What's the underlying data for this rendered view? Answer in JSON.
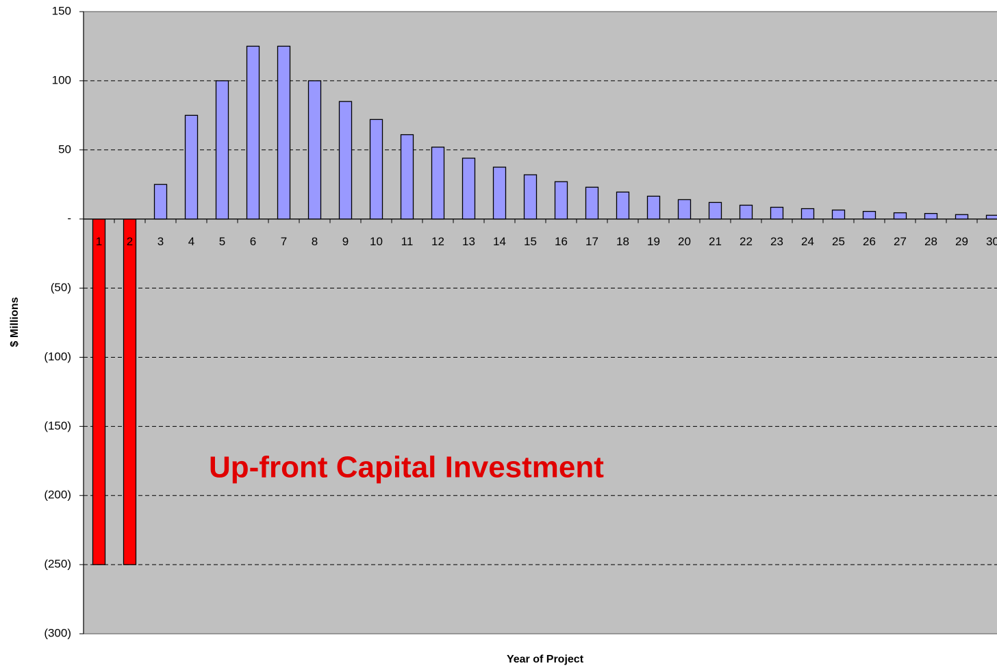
{
  "chart_data": {
    "type": "bar",
    "xlabel": "Year of Project",
    "ylabel": "$ Millions",
    "annotation": "Up-front Capital Investment",
    "categories": [
      "1",
      "2",
      "3",
      "4",
      "5",
      "6",
      "7",
      "8",
      "9",
      "10",
      "11",
      "12",
      "13",
      "14",
      "15",
      "16",
      "17",
      "18",
      "19",
      "20",
      "21",
      "22",
      "23",
      "24",
      "25",
      "26",
      "27",
      "28",
      "29",
      "30"
    ],
    "values": [
      -250,
      -250,
      25,
      75,
      100,
      125,
      125,
      100,
      85,
      72,
      61,
      52,
      44,
      37.5,
      32,
      27,
      23,
      19.5,
      16.5,
      14,
      12,
      10,
      8.5,
      7.5,
      6.5,
      5.5,
      4.5,
      4,
      3.2,
      2.7
    ],
    "color": "#9999ff",
    "negative_color": "#ff0000",
    "ylim": [
      -300,
      150
    ],
    "yticks": [
      150,
      100,
      50,
      {
        "value": 0,
        "label": "-"
      },
      {
        "value": -50,
        "label": "(50)"
      },
      {
        "value": -100,
        "label": "(100)"
      },
      {
        "value": -150,
        "label": "(150)"
      },
      {
        "value": -200,
        "label": "(200)"
      },
      {
        "value": -250,
        "label": "(250)"
      },
      {
        "value": -300,
        "label": "(300)"
      }
    ],
    "grid": true
  }
}
